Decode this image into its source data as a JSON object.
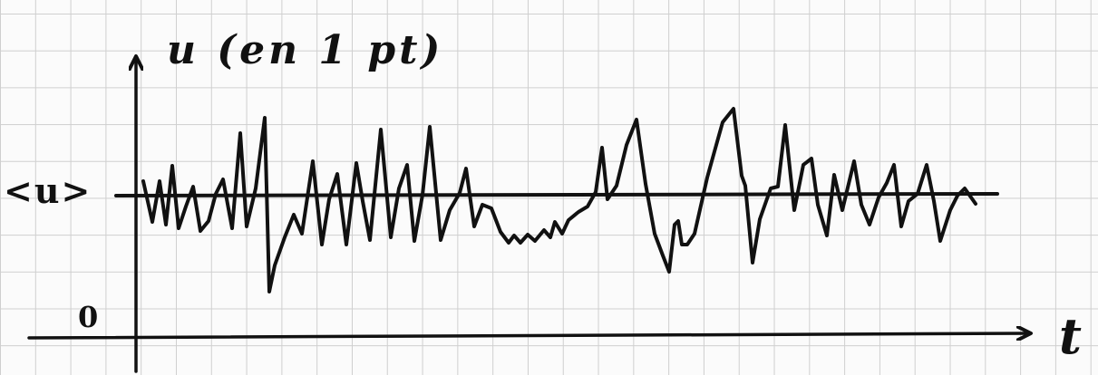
{
  "labels": {
    "y_axis": "u (en 1 pt)",
    "mean": "<u>",
    "origin": "0",
    "x_axis": "t"
  },
  "colors": {
    "ink": "#111111",
    "grid": "#cfcfcf",
    "paper": "#fbfbfb"
  }
}
